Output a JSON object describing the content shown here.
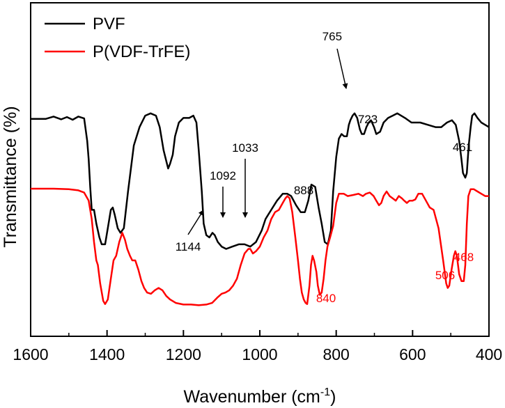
{
  "chart_data": {
    "type": "line",
    "title": "",
    "xlabel": "Wavenumber (cm",
    "xlabel_sup": "-1",
    "xlabel_tail": ")",
    "ylabel": "Transmittance (%)",
    "xlim": [
      1600,
      400
    ],
    "x_reversed": true,
    "ylim": [
      0,
      100
    ],
    "y_ticks_labeled": false,
    "grid": false,
    "legend_position": "top-left",
    "xticks": [
      1600,
      1400,
      1200,
      1000,
      800,
      600,
      400
    ],
    "xtick_labels": [
      "1600",
      "1400",
      "1200",
      "1000",
      "800",
      "600",
      "400"
    ],
    "series": [
      {
        "name": "PVF",
        "color": "#000000",
        "points": [
          [
            1600,
            81.6
          ],
          [
            1560,
            81.6
          ],
          [
            1540,
            82.6
          ],
          [
            1520,
            81.4
          ],
          [
            1505,
            82.4
          ],
          [
            1490,
            81.2
          ],
          [
            1475,
            82.6
          ],
          [
            1460,
            81.8
          ],
          [
            1452,
            72
          ],
          [
            1448,
            64
          ],
          [
            1444,
            52
          ],
          [
            1440,
            42
          ],
          [
            1434,
            42
          ],
          [
            1428,
            36
          ],
          [
            1420,
            30
          ],
          [
            1414,
            27
          ],
          [
            1405,
            27
          ],
          [
            1397,
            35
          ],
          [
            1390,
            42
          ],
          [
            1385,
            43
          ],
          [
            1380,
            40
          ],
          [
            1372,
            34
          ],
          [
            1365,
            32
          ],
          [
            1356,
            34
          ],
          [
            1345,
            50
          ],
          [
            1330,
            70
          ],
          [
            1315,
            78
          ],
          [
            1300,
            83
          ],
          [
            1286,
            84
          ],
          [
            1272,
            83
          ],
          [
            1262,
            78
          ],
          [
            1252,
            68
          ],
          [
            1246,
            64
          ],
          [
            1240,
            60
          ],
          [
            1235,
            62
          ],
          [
            1228,
            66
          ],
          [
            1222,
            74
          ],
          [
            1212,
            80
          ],
          [
            1200,
            82
          ],
          [
            1185,
            82
          ],
          [
            1174,
            83
          ],
          [
            1166,
            80
          ],
          [
            1160,
            68
          ],
          [
            1152,
            50
          ],
          [
            1147,
            36
          ],
          [
            1140,
            31
          ],
          [
            1132,
            30
          ],
          [
            1124,
            32
          ],
          [
            1118,
            31
          ],
          [
            1110,
            28
          ],
          [
            1100,
            26
          ],
          [
            1088,
            25
          ],
          [
            1072,
            26
          ],
          [
            1055,
            27
          ],
          [
            1040,
            27
          ],
          [
            1025,
            26
          ],
          [
            1010,
            28
          ],
          [
            995,
            33
          ],
          [
            985,
            38
          ],
          [
            970,
            42
          ],
          [
            955,
            46
          ],
          [
            940,
            49
          ],
          [
            928,
            49
          ],
          [
            918,
            48
          ],
          [
            905,
            44
          ],
          [
            893,
            41
          ],
          [
            882,
            41
          ],
          [
            873,
            46
          ],
          [
            865,
            53
          ],
          [
            855,
            52
          ],
          [
            846,
            43
          ],
          [
            838,
            36
          ],
          [
            830,
            28
          ],
          [
            822,
            27
          ],
          [
            814,
            33
          ],
          [
            808,
            50
          ],
          [
            800,
            65
          ],
          [
            793,
            73
          ],
          [
            786,
            75
          ],
          [
            779,
            74
          ],
          [
            772,
            74
          ],
          [
            767,
            79
          ],
          [
            763,
            81
          ],
          [
            757,
            83
          ],
          [
            752,
            84
          ],
          [
            745,
            82
          ],
          [
            738,
            77
          ],
          [
            733,
            75
          ],
          [
            727,
            75
          ],
          [
            721,
            78
          ],
          [
            715,
            80
          ],
          [
            709,
            81
          ],
          [
            701,
            78
          ],
          [
            695,
            75
          ],
          [
            685,
            76
          ],
          [
            676,
            80
          ],
          [
            664,
            82
          ],
          [
            652,
            83
          ],
          [
            640,
            84
          ],
          [
            620,
            82
          ],
          [
            603,
            80
          ],
          [
            580,
            80
          ],
          [
            560,
            79
          ],
          [
            540,
            78
          ],
          [
            525,
            78
          ],
          [
            510,
            80
          ],
          [
            497,
            81
          ],
          [
            487,
            79
          ],
          [
            478,
            72
          ],
          [
            472,
            64
          ],
          [
            468,
            58
          ],
          [
            462,
            56
          ],
          [
            458,
            58
          ],
          [
            453,
            70
          ],
          [
            448,
            78
          ],
          [
            444,
            83
          ],
          [
            438,
            84
          ],
          [
            430,
            82
          ],
          [
            420,
            80
          ],
          [
            410,
            79
          ],
          [
            400,
            78
          ]
        ]
      },
      {
        "name": "P(VDF-TrFE)",
        "color": "#ff0000",
        "points": [
          [
            1600,
            51.2
          ],
          [
            1540,
            51.2
          ],
          [
            1500,
            51
          ],
          [
            1475,
            50.5
          ],
          [
            1460,
            49.5
          ],
          [
            1448,
            46
          ],
          [
            1440,
            38
          ],
          [
            1434,
            28
          ],
          [
            1428,
            20
          ],
          [
            1424,
            18
          ],
          [
            1418,
            10
          ],
          [
            1410,
            2.4
          ],
          [
            1405,
            1
          ],
          [
            1398,
            3
          ],
          [
            1390,
            12
          ],
          [
            1383,
            20
          ],
          [
            1376,
            22
          ],
          [
            1368,
            28
          ],
          [
            1360,
            32
          ],
          [
            1353,
            29
          ],
          [
            1347,
            25
          ],
          [
            1340,
            22
          ],
          [
            1334,
            20
          ],
          [
            1326,
            20
          ],
          [
            1318,
            16
          ],
          [
            1310,
            11
          ],
          [
            1303,
            8
          ],
          [
            1295,
            6
          ],
          [
            1285,
            5.5
          ],
          [
            1275,
            7
          ],
          [
            1265,
            8
          ],
          [
            1255,
            7
          ],
          [
            1245,
            4.5
          ],
          [
            1235,
            3
          ],
          [
            1220,
            1.5
          ],
          [
            1200,
            0.8
          ],
          [
            1180,
            0.8
          ],
          [
            1160,
            0.5
          ],
          [
            1140,
            0.8
          ],
          [
            1125,
            1.5
          ],
          [
            1110,
            4
          ],
          [
            1100,
            5.5
          ],
          [
            1090,
            6
          ],
          [
            1080,
            7
          ],
          [
            1070,
            9
          ],
          [
            1060,
            12
          ],
          [
            1050,
            18
          ],
          [
            1040,
            23
          ],
          [
            1030,
            25
          ],
          [
            1025,
            25
          ],
          [
            1018,
            23
          ],
          [
            1010,
            24
          ],
          [
            1000,
            26
          ],
          [
            990,
            30
          ],
          [
            980,
            33
          ],
          [
            970,
            38
          ],
          [
            960,
            41
          ],
          [
            950,
            42
          ],
          [
            940,
            45
          ],
          [
            933,
            47
          ],
          [
            928,
            48
          ],
          [
            922,
            47
          ],
          [
            915,
            41
          ],
          [
            907,
            30
          ],
          [
            900,
            20
          ],
          [
            895,
            12
          ],
          [
            890,
            6
          ],
          [
            885,
            3
          ],
          [
            880,
            1.5
          ],
          [
            876,
            1
          ],
          [
            870,
            9
          ],
          [
            866,
            18
          ],
          [
            862,
            22
          ],
          [
            858,
            20
          ],
          [
            852,
            15
          ],
          [
            848,
            9
          ],
          [
            843,
            5
          ],
          [
            838,
            6
          ],
          [
            833,
            12
          ],
          [
            828,
            20
          ],
          [
            823,
            26
          ],
          [
            816,
            30
          ],
          [
            808,
            35
          ],
          [
            800,
            45
          ],
          [
            793,
            49
          ],
          [
            780,
            49
          ],
          [
            770,
            48
          ],
          [
            755,
            48.5
          ],
          [
            742,
            49
          ],
          [
            730,
            48
          ],
          [
            722,
            49
          ],
          [
            712,
            49.5
          ],
          [
            702,
            48
          ],
          [
            695,
            46
          ],
          [
            688,
            44
          ],
          [
            682,
            45
          ],
          [
            676,
            48
          ],
          [
            668,
            50
          ],
          [
            660,
            48
          ],
          [
            652,
            47
          ],
          [
            644,
            46
          ],
          [
            636,
            48
          ],
          [
            628,
            47
          ],
          [
            622,
            46
          ],
          [
            615,
            45
          ],
          [
            608,
            46
          ],
          [
            600,
            46
          ],
          [
            593,
            46.5
          ],
          [
            585,
            49
          ],
          [
            575,
            49
          ],
          [
            565,
            46
          ],
          [
            555,
            43
          ],
          [
            545,
            42
          ],
          [
            532,
            34
          ],
          [
            520,
            20
          ],
          [
            512,
            10
          ],
          [
            508,
            8
          ],
          [
            504,
            9
          ],
          [
            498,
            16
          ],
          [
            492,
            22
          ],
          [
            488,
            24
          ],
          [
            484,
            22
          ],
          [
            478,
            14
          ],
          [
            472,
            11
          ],
          [
            466,
            11
          ],
          [
            462,
            18
          ],
          [
            458,
            36
          ],
          [
            454,
            48
          ],
          [
            448,
            51
          ],
          [
            440,
            51
          ],
          [
            430,
            50
          ],
          [
            420,
            49
          ],
          [
            410,
            48
          ],
          [
            400,
            48
          ]
        ]
      }
    ],
    "annotations": [
      {
        "text": "765",
        "color": "#000000",
        "wavenumber": 765,
        "arrow": true
      },
      {
        "text": "723",
        "color": "#000000",
        "wavenumber": 723,
        "arrow": false
      },
      {
        "text": "461",
        "color": "#000000",
        "wavenumber": 461,
        "arrow": false
      },
      {
        "text": "1033",
        "color": "#000000",
        "wavenumber": 1033,
        "arrow": true
      },
      {
        "text": "1092",
        "color": "#000000",
        "wavenumber": 1092,
        "arrow": true
      },
      {
        "text": "1144",
        "color": "#000000",
        "wavenumber": 1144,
        "arrow": true
      },
      {
        "text": "888",
        "color": "#000000",
        "wavenumber": 888,
        "arrow": false
      },
      {
        "text": "840",
        "color": "#ff0000",
        "wavenumber": 840,
        "arrow": false
      },
      {
        "text": "506",
        "color": "#ff0000",
        "wavenumber": 506,
        "arrow": false
      },
      {
        "text": "468",
        "color": "#ff0000",
        "wavenumber": 468,
        "arrow": false
      }
    ]
  }
}
